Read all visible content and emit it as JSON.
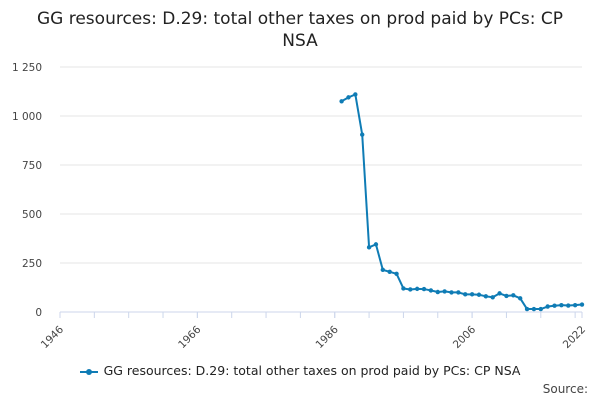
{
  "page": {
    "title": "GG resources: D.29: total other taxes on prod paid by PCs: CP NSA",
    "source": "Source:"
  },
  "colors": {
    "series": "#0f7cb5",
    "grid": "#e6e6e6",
    "axis": "#ccd6eb"
  },
  "chart_data": {
    "type": "line",
    "title": "GG resources: D.29: total other taxes on prod paid by PCs: CP NSA",
    "xlabel": "",
    "ylabel": "",
    "xlim": [
      1946,
      2022
    ],
    "ylim": [
      0,
      1250
    ],
    "x_ticks": [
      1946,
      1966,
      1986,
      2006,
      2022
    ],
    "x_tick_labels": [
      "1946",
      "1966",
      "1986",
      "2006",
      "2022"
    ],
    "y_ticks": [
      0,
      250,
      500,
      750,
      1000,
      1250
    ],
    "y_tick_labels": [
      "0",
      "250",
      "500",
      "750",
      "1 000",
      "1 250"
    ],
    "grid": true,
    "legend": "bottom",
    "series": [
      {
        "name": "GG resources: D.29: total other taxes on prod paid by PCs: CP NSA",
        "x": [
          1987,
          1988,
          1989,
          1990,
          1991,
          1992,
          1993,
          1994,
          1995,
          1996,
          1997,
          1998,
          1999,
          2000,
          2001,
          2002,
          2003,
          2004,
          2005,
          2006,
          2007,
          2008,
          2009,
          2010,
          2011,
          2012,
          2013,
          2014,
          2015,
          2016,
          2017,
          2018,
          2019,
          2020,
          2021,
          2022
        ],
        "y": [
          1075,
          1095,
          1110,
          905,
          330,
          345,
          215,
          205,
          195,
          120,
          115,
          118,
          117,
          110,
          102,
          105,
          100,
          100,
          90,
          90,
          88,
          80,
          75,
          95,
          82,
          85,
          70,
          15,
          15,
          15,
          28,
          32,
          35,
          33,
          35,
          38
        ]
      }
    ]
  }
}
